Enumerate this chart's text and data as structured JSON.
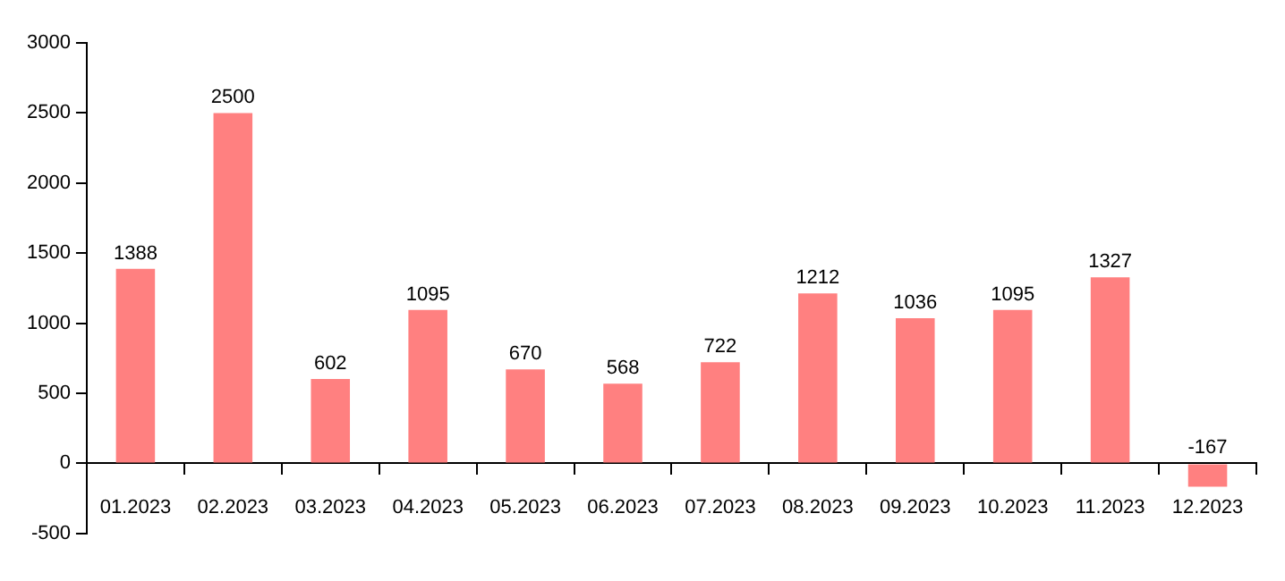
{
  "chart_data": {
    "type": "bar",
    "categories": [
      "01.2023",
      "02.2023",
      "03.2023",
      "04.2023",
      "05.2023",
      "06.2023",
      "07.2023",
      "08.2023",
      "09.2023",
      "10.2023",
      "11.2023",
      "12.2023"
    ],
    "values": [
      1388,
      2500,
      602,
      1095,
      670,
      568,
      722,
      1212,
      1036,
      1095,
      1327,
      -167
    ],
    "color": "#ff8080",
    "ylim": [
      -500,
      3000
    ],
    "yticks": [
      -500,
      0,
      500,
      1000,
      1500,
      2000,
      2500,
      3000
    ],
    "grid": false,
    "legend": false,
    "data_labels": true
  }
}
